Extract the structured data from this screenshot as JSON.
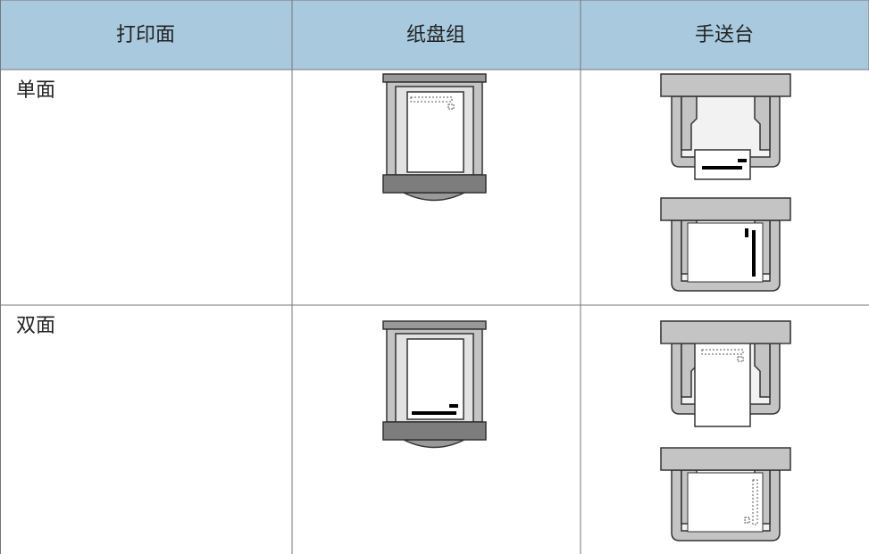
{
  "table": {
    "header": [
      "打印面",
      "纸盘组",
      "手送台"
    ],
    "rows": [
      [
        "单面"
      ],
      [
        "双面"
      ]
    ]
  }
}
